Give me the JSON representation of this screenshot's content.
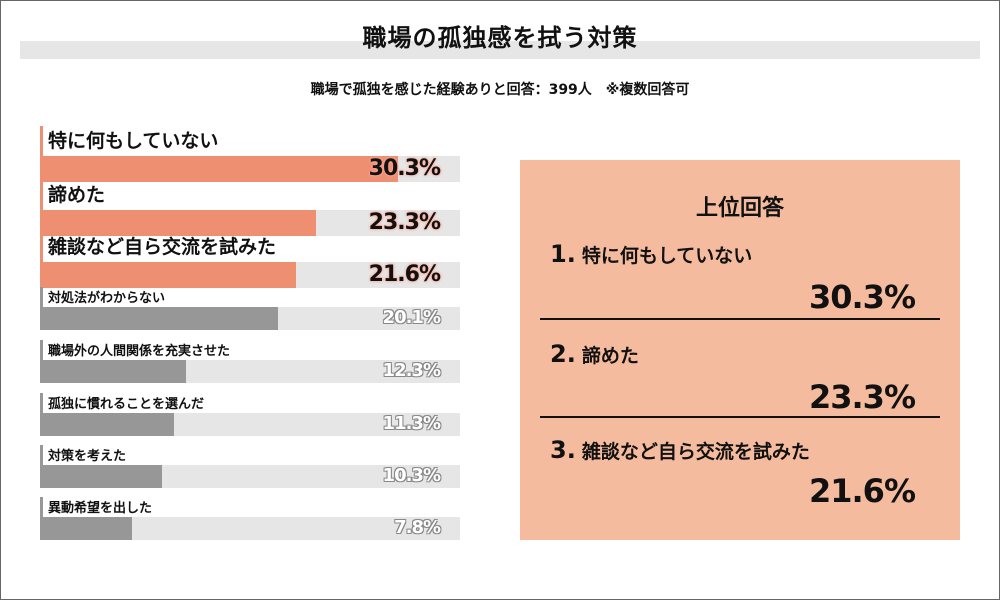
{
  "title": "職場の孤独感を拭う対策",
  "subtitle": "職場で孤独を感じた経験ありと回答：399人　※複数回答可",
  "chart_data": {
    "type": "bar",
    "orientation": "horizontal",
    "categories": [
      "特に何もしていない",
      "諦めた",
      "雑談など自ら交流を試みた",
      "対処法がわからない",
      "職場外の人間関係を充実させた",
      "孤独に慣れることを選んだ",
      "対策を考えた",
      "異動希望を出した"
    ],
    "values": [
      30.3,
      23.3,
      21.6,
      20.1,
      12.3,
      11.3,
      10.3,
      7.8
    ],
    "value_labels": [
      "30.3%",
      "23.3%",
      "21.6%",
      "20.1%",
      "12.3%",
      "11.3%",
      "10.3%",
      "7.8%"
    ],
    "xlim": [
      0,
      35.5
    ],
    "highlight_count": 3,
    "colors": {
      "highlight": "#ef8f72",
      "normal": "#979797",
      "track": "#e6e6e6"
    }
  },
  "panel": {
    "title": "上位回答",
    "background": "#f5bb9e",
    "items": [
      {
        "rank": "1",
        "label": "特に何もしていない",
        "value": "30.3%"
      },
      {
        "rank": "2",
        "label": "諦めた",
        "value": "23.3%"
      },
      {
        "rank": "3",
        "label": "雑談など自ら交流を試みた",
        "value": "21.6%"
      }
    ]
  }
}
